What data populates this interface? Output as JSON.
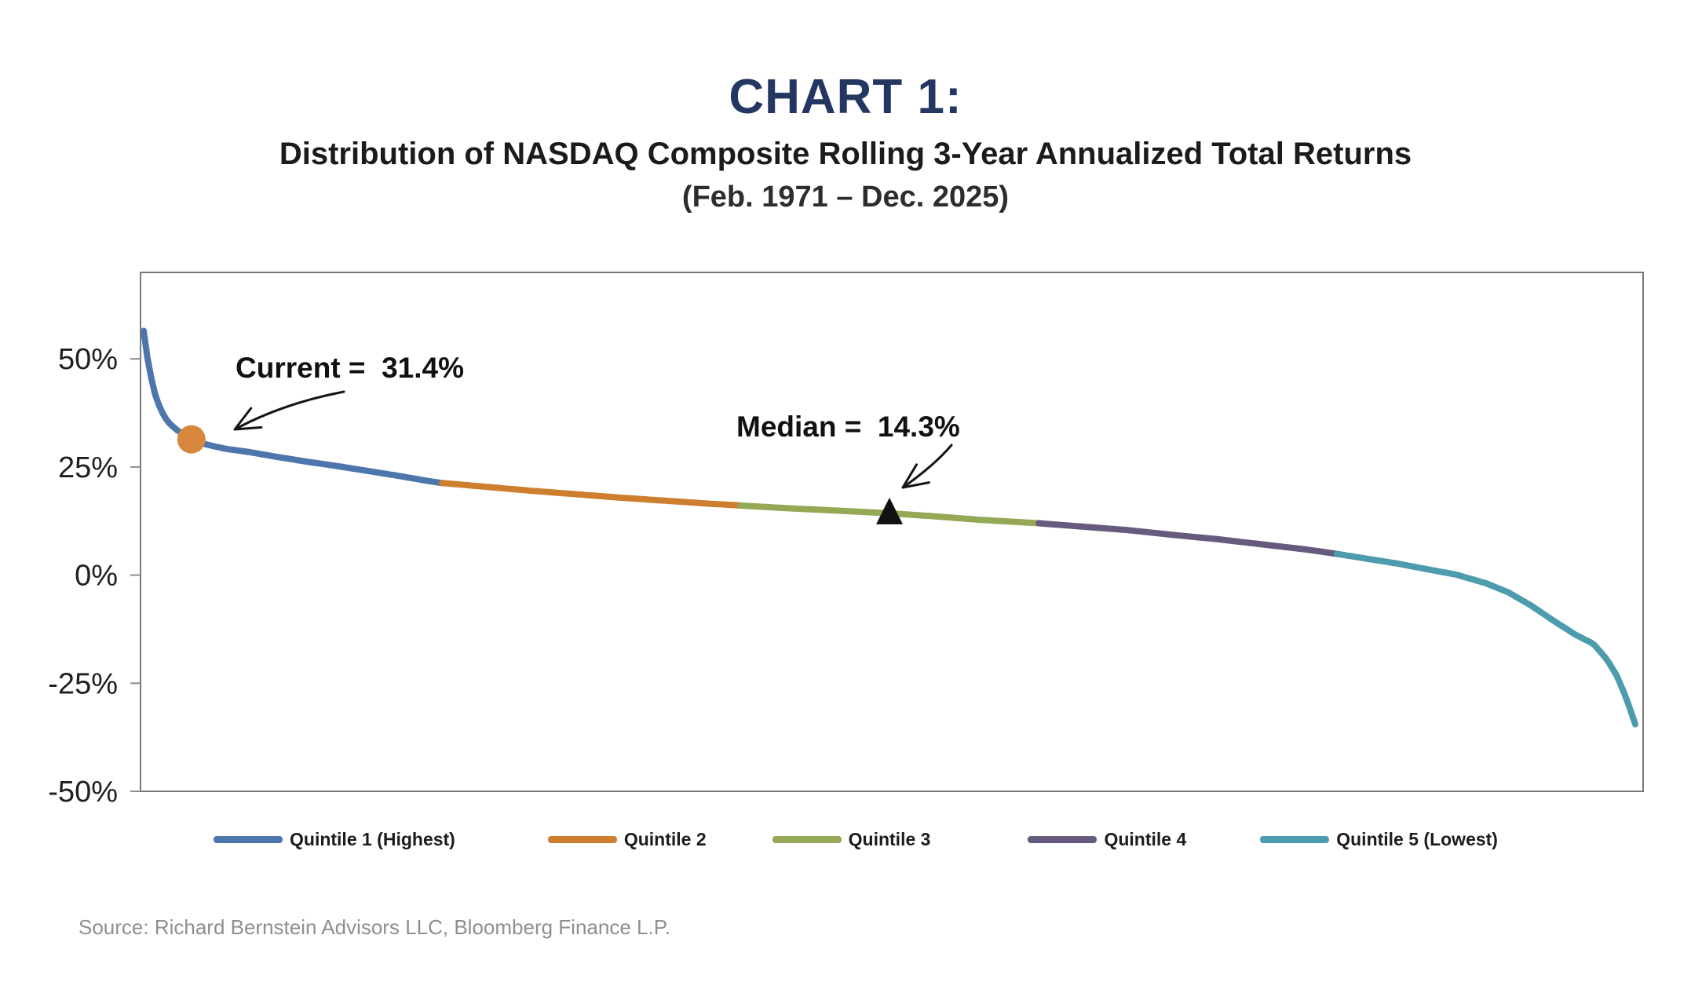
{
  "header": {
    "title": "CHART 1:",
    "subtitle": "Distribution of NASDAQ Composite Rolling 3-Year Annualized Total Returns",
    "period": "(Feb. 1971 – Dec. 2025)",
    "title_color": "#243763"
  },
  "annotations": {
    "current_text": "Current =  31.4%",
    "median_text": "Median =  14.3%"
  },
  "y_axis": {
    "tick_labels": [
      "50%",
      "25%",
      "0%",
      "-25%",
      "-50%"
    ],
    "tick_values": [
      50,
      25,
      0,
      -25,
      -50
    ]
  },
  "legend": [
    {
      "label": "Quintile 1 (Highest)",
      "color": "#4d76ad"
    },
    {
      "label": "Quintile 2",
      "color": "#cd7e2e"
    },
    {
      "label": "Quintile 3",
      "color": "#94a855"
    },
    {
      "label": "Quintile 4",
      "color": "#665a7f"
    },
    {
      "label": "Quintile 5 (Lowest)",
      "color": "#4d9cad"
    }
  ],
  "source": "Source: Richard Bernstein Advisors LLC, Bloomberg Finance L.P.",
  "chart_data": {
    "type": "line",
    "title": "Distribution of NASDAQ Composite Rolling 3-Year Annualized Total Returns (Feb. 1971 – Dec. 2025)",
    "description": "Rolling 3-year annualized total returns sorted from highest to lowest, split into quintiles",
    "ylim": [
      -50,
      70
    ],
    "y_tick_values": [
      50,
      25,
      0,
      -25,
      -50
    ],
    "x_range_percentile": [
      0,
      100
    ],
    "grid": false,
    "legend_position": "bottom",
    "quintiles": [
      {
        "name": "Quintile 1 (Highest)",
        "color": "#4d76ad",
        "pct_range": [
          0,
          20
        ]
      },
      {
        "name": "Quintile 2",
        "color": "#cd7e2e",
        "pct_range": [
          20,
          40
        ]
      },
      {
        "name": "Quintile 3",
        "color": "#94a855",
        "pct_range": [
          40,
          60
        ]
      },
      {
        "name": "Quintile 4",
        "color": "#665a7f",
        "pct_range": [
          60,
          80
        ]
      },
      {
        "name": "Quintile 5 (Lowest)",
        "color": "#4d9cad",
        "pct_range": [
          80,
          100
        ]
      }
    ],
    "curve_points_pct_value": [
      [
        0,
        56.5
      ],
      [
        0.3,
        49.0
      ],
      [
        0.7,
        42.5
      ],
      [
        1.1,
        38.5
      ],
      [
        1.6,
        35.5
      ],
      [
        2.2,
        33.6
      ],
      [
        3.2,
        31.4
      ],
      [
        4.2,
        30.2
      ],
      [
        5.5,
        29.2
      ],
      [
        7,
        28.5
      ],
      [
        9,
        27.3
      ],
      [
        11,
        26.2
      ],
      [
        13,
        25.2
      ],
      [
        15,
        24.1
      ],
      [
        17,
        23.0
      ],
      [
        19,
        21.8
      ],
      [
        20,
        21.3
      ],
      [
        23,
        20.4
      ],
      [
        26,
        19.5
      ],
      [
        29,
        18.7
      ],
      [
        32,
        17.9
      ],
      [
        35,
        17.2
      ],
      [
        38,
        16.5
      ],
      [
        40,
        16.1
      ],
      [
        43,
        15.5
      ],
      [
        46,
        15.0
      ],
      [
        50,
        14.3
      ],
      [
        53,
        13.6
      ],
      [
        56,
        12.8
      ],
      [
        60,
        12.0
      ],
      [
        63,
        11.2
      ],
      [
        66,
        10.4
      ],
      [
        69,
        9.3
      ],
      [
        72,
        8.3
      ],
      [
        75,
        7.1
      ],
      [
        78,
        5.9
      ],
      [
        80,
        4.9
      ],
      [
        82,
        3.8
      ],
      [
        84,
        2.7
      ],
      [
        86,
        1.4
      ],
      [
        88,
        0.1
      ],
      [
        90,
        -1.9
      ],
      [
        91.5,
        -4.0
      ],
      [
        93,
        -7.0
      ],
      [
        94.5,
        -10.5
      ],
      [
        96,
        -13.8
      ],
      [
        97.2,
        -15.9
      ],
      [
        98.1,
        -19.5
      ],
      [
        98.8,
        -23.5
      ],
      [
        99.4,
        -28.5
      ],
      [
        100,
        -34.5
      ]
    ],
    "markers": {
      "current": {
        "pct": 3.2,
        "value": 31.4,
        "shape": "circle",
        "color": "#d6873c",
        "label": "Current =  31.4%"
      },
      "median": {
        "pct": 50,
        "value": 14.3,
        "shape": "triangle-up",
        "color": "#111111",
        "label": "Median =  14.3%"
      }
    },
    "plot_border_color": "#787878",
    "tick_color": "#8c8c8c"
  }
}
